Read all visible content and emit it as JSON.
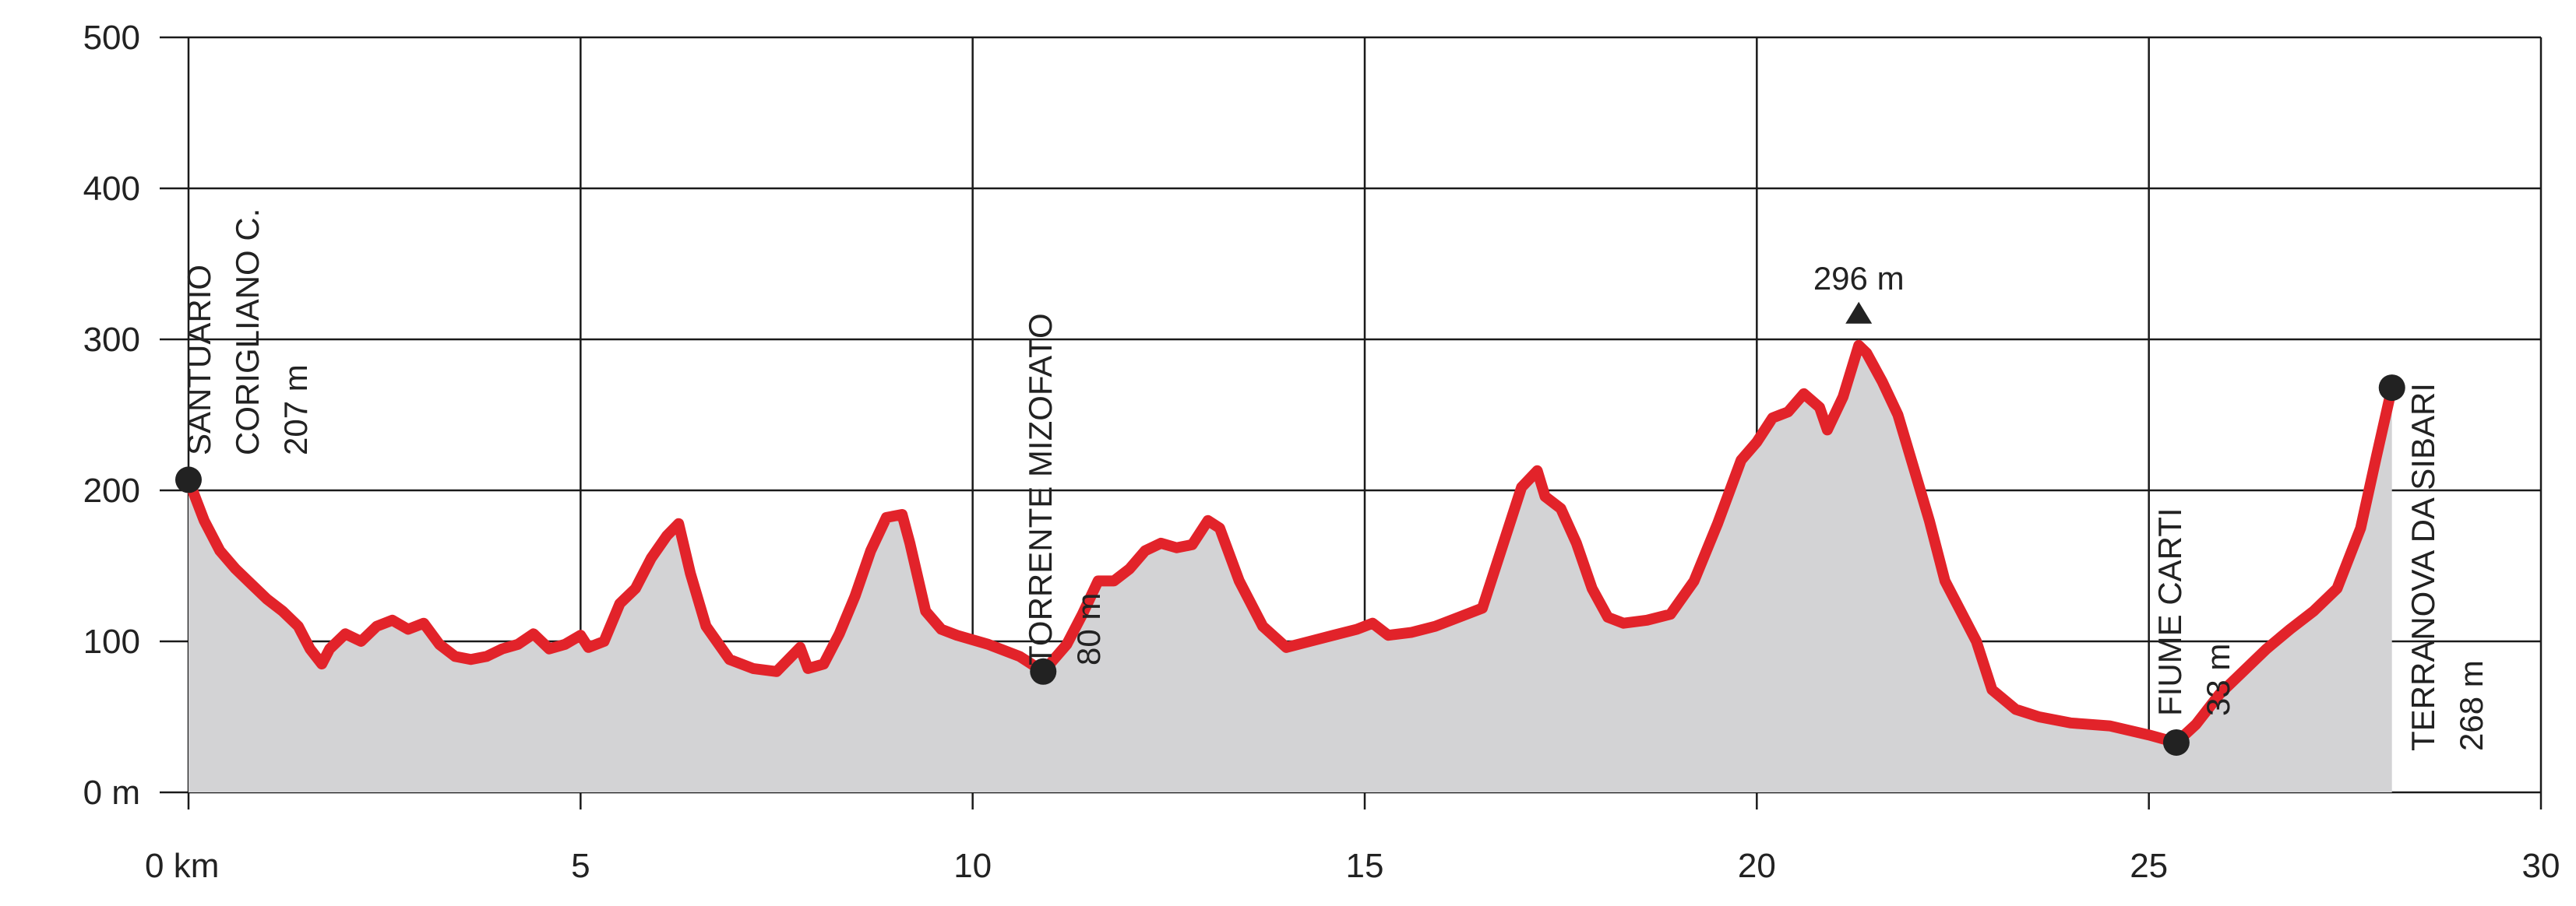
{
  "chart_data": {
    "type": "area",
    "title": "",
    "xlabel": "",
    "ylabel": "",
    "xlim": [
      0,
      30
    ],
    "ylim": [
      0,
      500
    ],
    "x_ticks": [
      {
        "value": 0,
        "label": "0 km"
      },
      {
        "value": 5,
        "label": "5"
      },
      {
        "value": 10,
        "label": "10"
      },
      {
        "value": 15,
        "label": "15"
      },
      {
        "value": 20,
        "label": "20"
      },
      {
        "value": 25,
        "label": "25"
      },
      {
        "value": 30,
        "label": "30"
      }
    ],
    "y_ticks": [
      {
        "value": 0,
        "label": "0 m"
      },
      {
        "value": 100,
        "label": "100"
      },
      {
        "value": 200,
        "label": "200"
      },
      {
        "value": 300,
        "label": "300"
      },
      {
        "value": 400,
        "label": "400"
      },
      {
        "value": 500,
        "label": "500"
      }
    ],
    "grid": true,
    "colors": {
      "line": "#e2232a",
      "fill": "#d3d3d5",
      "grid": "#1a1a1a",
      "point": "#222222"
    },
    "series": [
      {
        "x": [
          0,
          0.2,
          0.4,
          0.6,
          0.8,
          1.0,
          1.2,
          1.4,
          1.55,
          1.7,
          1.8,
          2.0,
          2.2,
          2.4,
          2.6,
          2.8,
          3.0,
          3.2,
          3.4,
          3.6,
          3.8,
          4.0,
          4.2,
          4.4,
          4.6,
          4.8,
          5.0,
          5.1,
          5.3,
          5.5,
          5.7,
          5.9,
          6.1,
          6.25,
          6.4,
          6.6,
          6.9,
          7.2,
          7.5,
          7.8,
          7.9,
          8.1,
          8.3,
          8.5,
          8.7,
          8.9,
          9.1,
          9.2,
          9.4,
          9.6,
          9.8,
          10.2,
          10.6,
          10.9,
          11.2,
          11.4,
          11.6,
          11.8,
          12.0,
          12.2,
          12.4,
          12.6,
          12.8,
          13.0,
          13.15,
          13.4,
          13.7,
          14.0,
          14.3,
          14.6,
          14.9,
          15.1,
          15.3,
          15.6,
          15.9,
          16.2,
          16.5,
          16.8,
          17.0,
          17.2,
          17.3,
          17.5,
          17.7,
          17.9,
          18.1,
          18.3,
          18.6,
          18.9,
          19.2,
          19.5,
          19.8,
          20.0,
          20.2,
          20.4,
          20.6,
          20.8,
          20.9,
          21.1,
          21.3,
          21.4,
          21.6,
          21.8,
          22.0,
          22.2,
          22.4,
          22.6,
          22.8,
          23.0,
          23.3,
          23.6,
          24.0,
          24.5,
          25.0,
          25.35,
          25.6,
          25.9,
          26.2,
          26.5,
          26.8,
          27.1,
          27.4,
          27.7,
          27.9,
          28.1
        ],
        "y": [
          207,
          180,
          160,
          148,
          138,
          128,
          120,
          110,
          95,
          85,
          95,
          105,
          100,
          110,
          114,
          108,
          112,
          98,
          90,
          88,
          90,
          95,
          98,
          105,
          95,
          98,
          104,
          96,
          100,
          125,
          135,
          155,
          170,
          178,
          145,
          110,
          88,
          82,
          80,
          96,
          82,
          85,
          105,
          130,
          160,
          182,
          184,
          165,
          120,
          108,
          104,
          98,
          90,
          80,
          98,
          118,
          140,
          140,
          148,
          160,
          165,
          162,
          164,
          180,
          175,
          140,
          110,
          96,
          100,
          104,
          108,
          112,
          104,
          106,
          110,
          116,
          122,
          170,
          202,
          213,
          196,
          188,
          165,
          135,
          116,
          112,
          114,
          118,
          140,
          178,
          220,
          232,
          248,
          252,
          264,
          255,
          240,
          262,
          296,
          291,
          272,
          250,
          215,
          180,
          140,
          120,
          100,
          68,
          55,
          50,
          46,
          44,
          38,
          33,
          45,
          65,
          80,
          95,
          108,
          120,
          135,
          175,
          222,
          268
        ]
      }
    ],
    "peak_label": "296 m",
    "annotations": [
      {
        "x": 0,
        "y": 207,
        "lines": [
          "SANTUARIO",
          "CORIGLIANO C.",
          "207 m"
        ]
      },
      {
        "x": 10.9,
        "y": 80,
        "lines": [
          "TORRENTE MIZOFATO",
          "80 m"
        ]
      },
      {
        "x": 25.35,
        "y": 33,
        "lines": [
          "FIUME CARTI",
          "33 m"
        ]
      },
      {
        "x": 28.1,
        "y": 268,
        "lines": [
          "TERRANOVA DA SIBARI",
          "268 m"
        ]
      }
    ]
  }
}
